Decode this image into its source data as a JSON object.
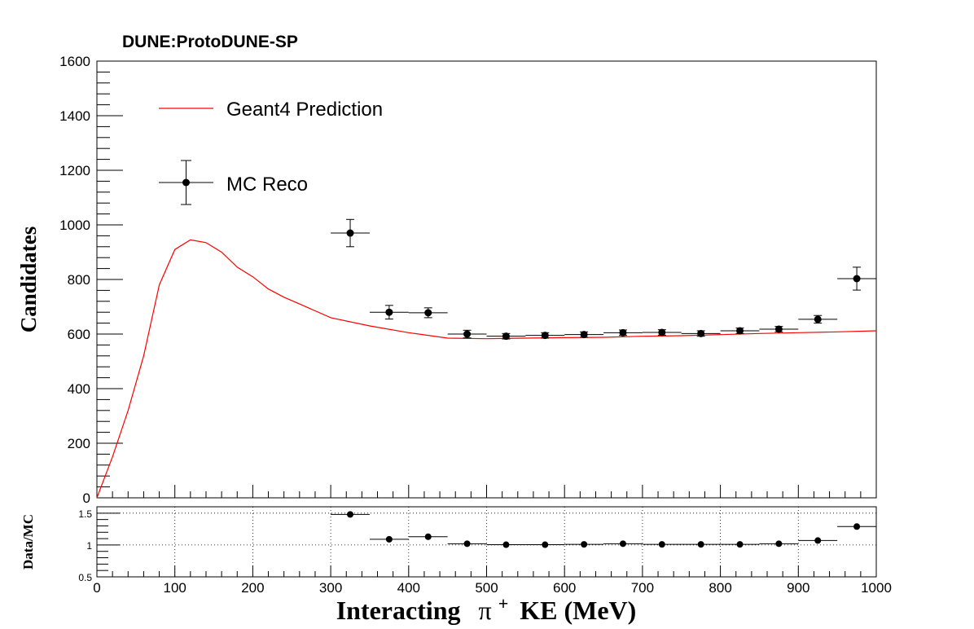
{
  "chart_data": [
    {
      "type": "scatter",
      "title": "DUNE:ProtoDUNE-SP",
      "ylabel": "Candidates",
      "xlim": [
        0,
        1000
      ],
      "ylim": [
        0,
        1600
      ],
      "x_ticks": [
        0,
        100,
        200,
        300,
        400,
        500,
        600,
        700,
        800,
        900,
        1000
      ],
      "y_ticks": [
        0,
        200,
        400,
        600,
        800,
        1000,
        1200,
        1400,
        1600
      ],
      "grid": false,
      "legend": "top-left",
      "series": [
        {
          "name": "Geant4 Prediction",
          "kind": "line",
          "color": "#ff0000",
          "x": [
            0,
            20,
            40,
            60,
            80,
            100,
            120,
            140,
            160,
            180,
            200,
            220,
            240,
            260,
            280,
            300,
            350,
            400,
            450,
            500,
            550,
            600,
            650,
            700,
            750,
            800,
            850,
            900,
            950,
            1000
          ],
          "y": [
            0,
            150,
            320,
            520,
            780,
            910,
            945,
            935,
            900,
            845,
            810,
            765,
            735,
            710,
            685,
            660,
            630,
            605,
            585,
            583,
            585,
            587,
            588,
            592,
            594,
            598,
            602,
            605,
            608,
            612
          ]
        },
        {
          "name": "MC Reco",
          "kind": "points",
          "color": "#000000",
          "x": [
            325,
            375,
            425,
            475,
            525,
            575,
            625,
            675,
            725,
            775,
            825,
            875,
            925,
            975
          ],
          "y": [
            970,
            680,
            678,
            600,
            592,
            595,
            598,
            605,
            606,
            602,
            612,
            618,
            654,
            803
          ],
          "yerr": [
            50,
            25,
            18,
            14,
            10,
            10,
            10,
            10,
            10,
            10,
            10,
            10,
            14,
            42
          ],
          "xerr": 25
        }
      ]
    },
    {
      "type": "scatter",
      "xlabel": "Interacting",
      "xlabel_particle": "π",
      "xlabel_sup": "+",
      "xlabel_units": "KE (MeV)",
      "ylabel": "Data/MC",
      "xlim": [
        0,
        1000
      ],
      "ylim": [
        0.5,
        1.6
      ],
      "x_ticks": [
        0,
        100,
        200,
        300,
        400,
        500,
        600,
        700,
        800,
        900,
        1000
      ],
      "x_tick_labels": [
        "0",
        "100",
        "200",
        "300",
        "400",
        "500",
        "600",
        "700",
        "800",
        "900",
        "1000"
      ],
      "y_ticks": [
        0.5,
        1,
        1.5
      ],
      "y_tick_labels": [
        "0.5",
        "1",
        "1.5"
      ],
      "grid": true,
      "series": [
        {
          "kind": "points",
          "color": "#000000",
          "x": [
            325,
            375,
            425,
            475,
            525,
            575,
            625,
            675,
            725,
            775,
            825,
            875,
            925,
            975
          ],
          "y": [
            1.48,
            1.09,
            1.13,
            1.02,
            1.005,
            1.005,
            1.01,
            1.02,
            1.01,
            1.01,
            1.01,
            1.02,
            1.07,
            1.29
          ],
          "xerr": 25
        }
      ]
    }
  ]
}
